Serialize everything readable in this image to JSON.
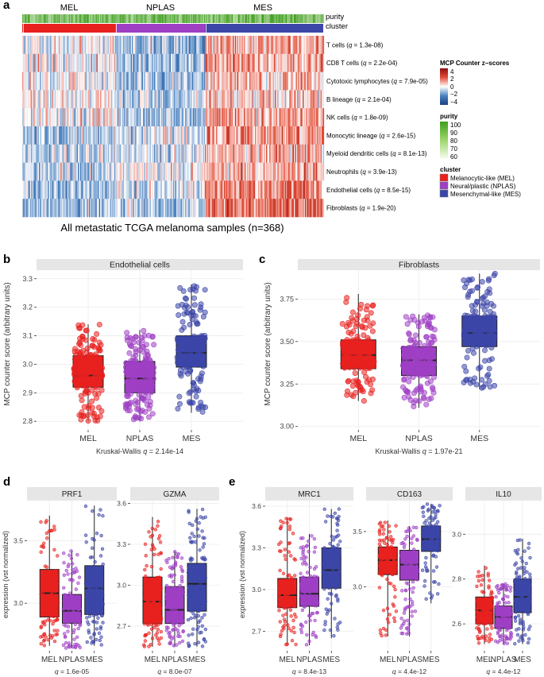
{
  "panel_labels": {
    "a": "a",
    "b": "b",
    "c": "c",
    "d": "d",
    "e": "e"
  },
  "heatmap": {
    "clusters": [
      "MEL",
      "NPLAS",
      "MES"
    ],
    "annotation_rows": [
      "purity",
      "cluster"
    ],
    "rows": [
      {
        "cell": "T cells",
        "q": "1.3e-08"
      },
      {
        "cell": "CD8 T cells",
        "q": "2.2e-04"
      },
      {
        "cell": "Cytotoxic lymphocytes",
        "q": "7.9e-05"
      },
      {
        "cell": "B lineage",
        "q": "2.1e-04"
      },
      {
        "cell": "NK cells",
        "q": "1.8e-09"
      },
      {
        "cell": "Monocytic lineage",
        "q": "2.6e-15"
      },
      {
        "cell": "Myeloid dendritic cells",
        "q": "8.1e-13"
      },
      {
        "cell": "Neutrophils",
        "q": "3.9e-13"
      },
      {
        "cell": "Endothelial cells",
        "q": "8.5e-15"
      },
      {
        "cell": "Fibroblasts",
        "q": "1.9e-20"
      }
    ],
    "caption": "All metastatic TCGA melanoma samples (n=368)",
    "legend": {
      "zscore_title": "MCP Counter z−scores",
      "zscore_ticks": [
        "4",
        "2",
        "0",
        "−2",
        "−4"
      ],
      "purity_title": "purity",
      "purity_ticks": [
        "100",
        "90",
        "80",
        "70",
        "60"
      ],
      "cluster_title": "cluster",
      "cluster_items": [
        {
          "label": "Melanocytic-like (MEL)",
          "color": "#e8211f"
        },
        {
          "label": "Neural/plastic (NPLAS)",
          "color": "#9e3fc4"
        },
        {
          "label": "Mesenchymal-like (MES)",
          "color": "#3c46a8"
        }
      ]
    }
  },
  "colors": {
    "MEL": "#e8211f",
    "NPLAS": "#9e3fc4",
    "MES": "#3c46a8",
    "strip": "#e6e6e6",
    "grid": "#ececec"
  },
  "chart_data": [
    {
      "id": "b",
      "type": "box",
      "title": "Endothelial cells",
      "ylabel": "MCP counter score (arbitrary units)",
      "ylim": [
        2.77,
        3.33
      ],
      "yticks": [
        2.8,
        2.9,
        3.0,
        3.1,
        3.2,
        3.3
      ],
      "ytick_labels": [
        "2.8",
        "2.9",
        "3.0",
        "3.1",
        "3.2",
        "3.3"
      ],
      "categories": [
        "MEL",
        "NPLAS",
        "MES"
      ],
      "boxes": [
        {
          "q1": 2.92,
          "median": 2.96,
          "q3": 3.03,
          "whisker_low": 2.8,
          "whisker_high": 3.14
        },
        {
          "q1": 2.9,
          "median": 2.95,
          "q3": 3.01,
          "whisker_low": 2.8,
          "whisker_high": 3.12
        },
        {
          "q1": 2.99,
          "median": 3.04,
          "q3": 3.1,
          "whisker_low": 2.83,
          "whisker_high": 3.28
        }
      ],
      "footer_prefix": "Kruskal-Wallis ",
      "footer_q": "q",
      "footer_value": " = 2.14e-14"
    },
    {
      "id": "c",
      "type": "box",
      "title": "Fibroblasts",
      "ylabel": "MCP counter score (arbitrary units)",
      "ylim": [
        2.98,
        3.92
      ],
      "yticks": [
        3.0,
        3.25,
        3.5,
        3.75
      ],
      "ytick_labels": [
        "3.00",
        "3.25",
        "3.50",
        "3.75"
      ],
      "categories": [
        "MEL",
        "NPLAS",
        "MES"
      ],
      "boxes": [
        {
          "q1": 3.34,
          "median": 3.42,
          "q3": 3.51,
          "whisker_low": 3.15,
          "whisker_high": 3.78
        },
        {
          "q1": 3.3,
          "median": 3.39,
          "q3": 3.47,
          "whisker_low": 3.11,
          "whisker_high": 3.66
        },
        {
          "q1": 3.47,
          "median": 3.55,
          "q3": 3.65,
          "whisker_low": 3.22,
          "whisker_high": 3.9
        }
      ],
      "footer_prefix": "Kruskal-Wallis ",
      "footer_q": "q",
      "footer_value": " = 1.97e-21"
    },
    {
      "id": "d1",
      "type": "box",
      "title": "PRF1",
      "ylabel": "expression (vst normalized)",
      "ylim": [
        2.62,
        3.82
      ],
      "yticks": [
        3.0,
        3.5
      ],
      "ytick_labels": [
        "3.0",
        "3.5"
      ],
      "categories": [
        "MEL",
        "NPLAS",
        "MES"
      ],
      "boxes": [
        {
          "q1": 2.89,
          "median": 3.08,
          "q3": 3.27,
          "whisker_low": 2.66,
          "whisker_high": 3.7
        },
        {
          "q1": 2.84,
          "median": 2.94,
          "q3": 3.07,
          "whisker_low": 2.64,
          "whisker_high": 3.42
        },
        {
          "q1": 2.91,
          "median": 3.12,
          "q3": 3.3,
          "whisker_low": 2.66,
          "whisker_high": 3.78
        }
      ],
      "footer_prefix": "",
      "footer_q": "q",
      "footer_value": " = 1.6e-05"
    },
    {
      "id": "d2",
      "type": "box",
      "title": "GZMA",
      "ylabel": "",
      "ylim": [
        2.52,
        3.62
      ],
      "yticks": [
        2.7,
        3.0,
        3.3,
        3.6
      ],
      "ytick_labels": [
        "2.7",
        "3.0",
        "3.3",
        "3.6"
      ],
      "categories": [
        "MEL",
        "NPLAS",
        "MES"
      ],
      "boxes": [
        {
          "q1": 2.72,
          "median": 2.88,
          "q3": 3.06,
          "whisker_low": 2.55,
          "whisker_high": 3.5
        },
        {
          "q1": 2.72,
          "median": 2.82,
          "q3": 2.99,
          "whisker_low": 2.55,
          "whisker_high": 3.25
        },
        {
          "q1": 2.81,
          "median": 3.01,
          "q3": 3.16,
          "whisker_low": 2.55,
          "whisker_high": 3.56
        }
      ],
      "footer_prefix": "",
      "footer_q": "q",
      "footer_value": " = 8.0e-07"
    },
    {
      "id": "e1",
      "type": "box",
      "title": "MRC1",
      "ylabel": "expression (vst normalized)",
      "ylim": [
        2.56,
        3.64
      ],
      "yticks": [
        2.7,
        3.0,
        3.3,
        3.6
      ],
      "ytick_labels": [
        "2.7",
        "3.0",
        "3.3",
        "3.6"
      ],
      "categories": [
        "MEL",
        "NPLAS",
        "MES"
      ],
      "boxes": [
        {
          "q1": 2.87,
          "median": 2.96,
          "q3": 3.08,
          "whisker_low": 2.6,
          "whisker_high": 3.52
        },
        {
          "q1": 2.88,
          "median": 2.97,
          "q3": 3.09,
          "whisker_low": 2.6,
          "whisker_high": 3.4
        },
        {
          "q1": 3.01,
          "median": 3.14,
          "q3": 3.3,
          "whisker_low": 2.65,
          "whisker_high": 3.58
        }
      ],
      "footer_prefix": "",
      "footer_q": "q",
      "footer_value": " = 8.4e-13"
    },
    {
      "id": "e2",
      "type": "box",
      "title": "CD163",
      "ylabel": "",
      "ylim": [
        2.42,
        3.78
      ],
      "yticks": [
        3.0,
        3.5
      ],
      "ytick_labels": [
        "3.0",
        "3.5"
      ],
      "categories": [
        "MEL",
        "NPLAS",
        "MES"
      ],
      "boxes": [
        {
          "q1": 3.11,
          "median": 3.24,
          "q3": 3.36,
          "whisker_low": 2.55,
          "whisker_high": 3.6
        },
        {
          "q1": 3.06,
          "median": 3.2,
          "q3": 3.33,
          "whisker_low": 2.55,
          "whisker_high": 3.55
        },
        {
          "q1": 3.32,
          "median": 3.43,
          "q3": 3.55,
          "whisker_low": 2.85,
          "whisker_high": 3.75
        }
      ],
      "footer_prefix": "",
      "footer_q": "q",
      "footer_value": " = 4.4e-12"
    },
    {
      "id": "e3",
      "type": "box",
      "title": "IL10",
      "ylabel": "",
      "ylim": [
        2.48,
        3.15
      ],
      "yticks": [
        2.6,
        2.8,
        3.0
      ],
      "ytick_labels": [
        "2.6",
        "2.8",
        "3.0"
      ],
      "categories": [
        "MEL",
        "NPLAS",
        "MES"
      ],
      "boxes": [
        {
          "q1": 2.6,
          "median": 2.66,
          "q3": 2.72,
          "whisker_low": 2.51,
          "whisker_high": 2.86
        },
        {
          "q1": 2.58,
          "median": 2.63,
          "q3": 2.68,
          "whisker_low": 2.51,
          "whisker_high": 2.78
        },
        {
          "q1": 2.65,
          "median": 2.72,
          "q3": 2.8,
          "whisker_low": 2.51,
          "whisker_high": 2.98
        }
      ],
      "footer_prefix": "",
      "footer_q": "q",
      "footer_value": " = 4.4e-12"
    }
  ]
}
